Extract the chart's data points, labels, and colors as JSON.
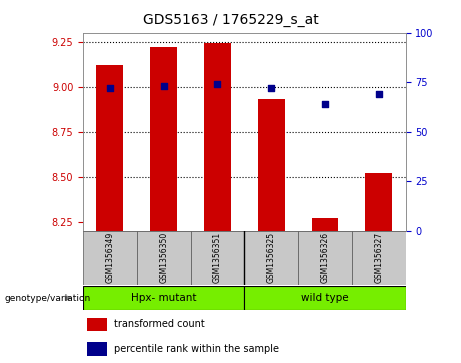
{
  "title": "GDS5163 / 1765229_s_at",
  "samples": [
    "GSM1356349",
    "GSM1356350",
    "GSM1356351",
    "GSM1356325",
    "GSM1356326",
    "GSM1356327"
  ],
  "transformed_counts": [
    9.12,
    9.22,
    9.24,
    8.93,
    8.27,
    8.52
  ],
  "percentile_ranks": [
    72,
    73,
    74,
    72,
    64,
    69
  ],
  "ylim_left": [
    8.2,
    9.3
  ],
  "ylim_right": [
    0,
    100
  ],
  "yticks_left": [
    8.25,
    8.5,
    8.75,
    9.0,
    9.25
  ],
  "yticks_right": [
    0,
    25,
    50,
    75,
    100
  ],
  "groups": [
    {
      "label": "Hpx- mutant",
      "color": "#7CFC00"
    },
    {
      "label": "wild type",
      "color": "#7CFC00"
    }
  ],
  "bar_color": "#cc0000",
  "dot_color": "#00008B",
  "bar_width": 0.5,
  "dot_size": 25,
  "background_color": "#ffffff",
  "left_tick_color": "#cc0000",
  "right_tick_color": "#0000cc",
  "genotype_label": "genotype/variation",
  "legend_items": [
    "transformed count",
    "percentile rank within the sample"
  ],
  "sample_bg_color": "#c8c8c8",
  "group_green": "#76EE00"
}
